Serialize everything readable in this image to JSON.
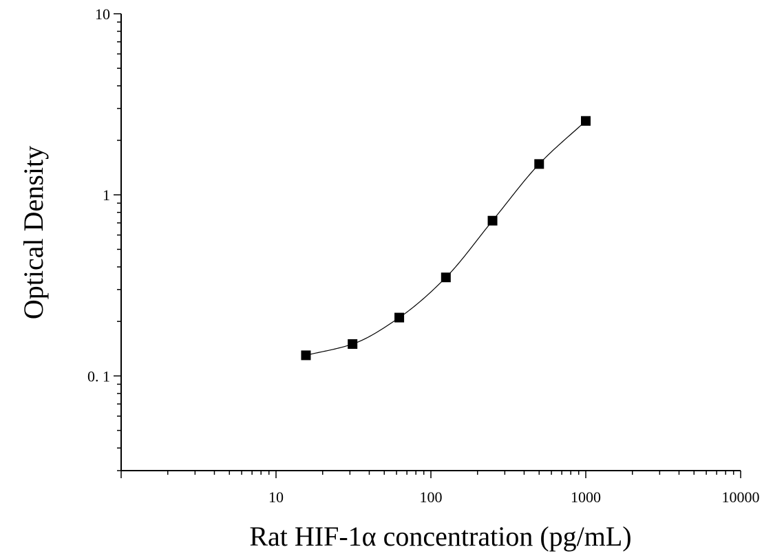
{
  "chart_data": {
    "type": "scatter",
    "title": "",
    "xlabel": "Rat HIF-1α concentration (pg/mL)",
    "ylabel": "Optical Density",
    "x_scale": "log",
    "y_scale": "log",
    "xlim": [
      1,
      10000
    ],
    "ylim": [
      0.03,
      10
    ],
    "x_ticks": [
      {
        "value": 10,
        "label": "10"
      },
      {
        "value": 100,
        "label": "100"
      },
      {
        "value": 1000,
        "label": "1000"
      },
      {
        "value": 10000,
        "label": "10000"
      }
    ],
    "y_ticks": [
      {
        "value": 0.1,
        "label": "0. 1"
      },
      {
        "value": 1,
        "label": "1"
      },
      {
        "value": 10,
        "label": "10"
      }
    ],
    "grid": false,
    "legend": "none",
    "marker_color": "#000000",
    "line_color": "#000000",
    "series": [
      {
        "x": [
          15.6,
          31.2,
          62.5,
          125,
          250,
          500,
          1000
        ],
        "y": [
          0.13,
          0.15,
          0.21,
          0.35,
          0.72,
          1.48,
          2.56
        ]
      }
    ]
  }
}
